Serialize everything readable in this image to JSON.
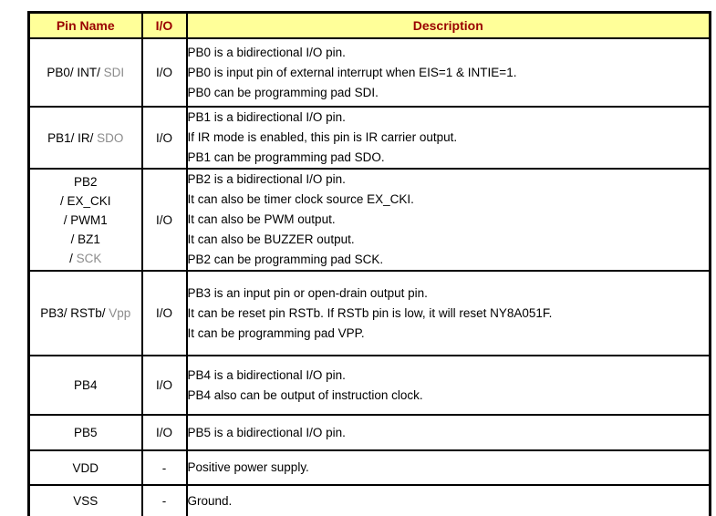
{
  "colors": {
    "page_bg": "#FFFFFF",
    "header_bg": "#FFFF99",
    "header_text": "#990000",
    "body_text": "#000000",
    "muted_text": "#8C8C8C",
    "border": "#000000"
  },
  "table": {
    "header": {
      "pin_name": "Pin Name",
      "io": "I/O",
      "description": "Description"
    },
    "rows": [
      {
        "pin_lines": [
          [
            {
              "text": "PB0/ INT/ ",
              "muted": false
            },
            {
              "text": "SDI",
              "muted": true
            }
          ]
        ],
        "io": "I/O",
        "desc_lines": [
          "PB0 is a bidirectional I/O pin.",
          "PB0 is input pin of external interrupt when EIS=1 & INTIE=1.",
          "PB0 can be programming pad SDI."
        ]
      },
      {
        "pin_lines": [
          [
            {
              "text": "PB1/ IR/ ",
              "muted": false
            },
            {
              "text": "SDO",
              "muted": true
            }
          ]
        ],
        "io": "I/O",
        "desc_lines": [
          "PB1 is a bidirectional I/O pin.",
          "If IR mode is enabled, this pin is IR carrier output.",
          "PB1 can be programming pad SDO."
        ]
      },
      {
        "pin_lines": [
          [
            {
              "text": "PB2",
              "muted": false
            }
          ],
          [
            {
              "text": "/ EX_CKI",
              "muted": false
            }
          ],
          [
            {
              "text": "/ PWM1",
              "muted": false
            }
          ],
          [
            {
              "text": "/ BZ1",
              "muted": false
            }
          ],
          [
            {
              "text": "/ ",
              "muted": false
            },
            {
              "text": "SCK",
              "muted": true
            }
          ]
        ],
        "io": "I/O",
        "desc_lines": [
          "PB2 is a bidirectional I/O pin.",
          "It can also be timer clock source EX_CKI.",
          "It can also be PWM output.",
          "It can also be BUZZER output.",
          "PB2 can be programming pad SCK."
        ]
      },
      {
        "pin_lines": [
          [
            {
              "text": "PB3/ RSTb/ ",
              "muted": false
            },
            {
              "text": "Vpp",
              "muted": true
            }
          ]
        ],
        "io": "I/O",
        "desc_lines": [
          "PB3 is an input pin or open-drain output pin.",
          "It can be reset pin RSTb. If RSTb pin is low, it will reset NY8A051F.",
          "It can be programming pad VPP."
        ]
      },
      {
        "pin_lines": [
          [
            {
              "text": "PB4",
              "muted": false
            }
          ]
        ],
        "io": "I/O",
        "desc_lines": [
          "PB4 is a bidirectional I/O pin.",
          "PB4 also can be output of instruction clock."
        ]
      },
      {
        "pin_lines": [
          [
            {
              "text": "PB5",
              "muted": false
            }
          ]
        ],
        "io": "I/O",
        "desc_lines": [
          "PB5 is a bidirectional I/O pin."
        ]
      },
      {
        "pin_lines": [
          [
            {
              "text": "VDD",
              "muted": false
            }
          ]
        ],
        "io": "-",
        "desc_lines": [
          "Positive power supply."
        ]
      },
      {
        "pin_lines": [
          [
            {
              "text": "VSS",
              "muted": false
            }
          ]
        ],
        "io": "-",
        "desc_lines": [
          "Ground."
        ]
      }
    ]
  }
}
